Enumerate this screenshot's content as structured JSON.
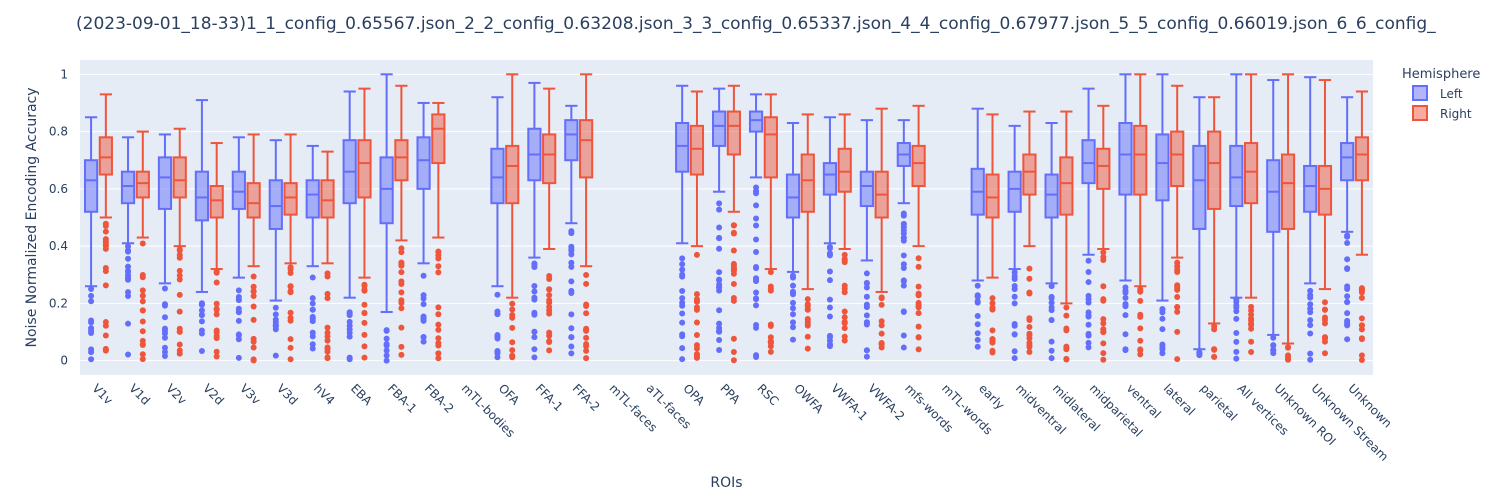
{
  "chart_data": {
    "type": "box",
    "title": "(2023-09-01_18-33)1_1_config_0.65567.json_2_2_config_0.63208.json_3_3_config_0.65337.json_4_4_config_0.67977.json_5_5_config_0.66019.json_6_6_config_",
    "xlabel": "ROIs",
    "ylabel": "Noise Normalized Encoding Accuracy",
    "ylim": [
      -0.05,
      1.05
    ],
    "yticks": [
      0,
      0.2,
      0.4,
      0.6,
      0.8,
      1
    ],
    "ytick_labels": [
      "0",
      "0.2",
      "0.4",
      "0.6",
      "0.8",
      "1"
    ],
    "grid": true,
    "legend_title": "Hemisphere",
    "legend_position": "right",
    "categories": [
      "V1v",
      "V1d",
      "V2v",
      "V2d",
      "V3v",
      "V3d",
      "hV4",
      "EBA",
      "FBA-1",
      "FBA-2",
      "mTL-bodies",
      "OFA",
      "FFA-1",
      "FFA-2",
      "mTL-faces",
      "aTL-faces",
      "OPA",
      "PPA",
      "RSC",
      "OWFA",
      "VWFA-1",
      "VWFA-2",
      "mfs-words",
      "mTL-words",
      "early",
      "midventral",
      "midlateral",
      "midparietal",
      "ventral",
      "lateral",
      "parietal",
      "All vertices",
      "Unknown ROI",
      "Unknown Stream",
      "Unknown"
    ],
    "series": [
      {
        "name": "Left",
        "color": "#636efa",
        "boxes": [
          {
            "lf": 0.26,
            "q1": 0.52,
            "med": 0.63,
            "q3": 0.7,
            "uf": 0.85
          },
          {
            "lf": 0.41,
            "q1": 0.55,
            "med": 0.61,
            "q3": 0.66,
            "uf": 0.78
          },
          {
            "lf": 0.27,
            "q1": 0.53,
            "med": 0.64,
            "q3": 0.71,
            "uf": 0.79
          },
          {
            "lf": 0.24,
            "q1": 0.49,
            "med": 0.57,
            "q3": 0.66,
            "uf": 0.91
          },
          {
            "lf": 0.29,
            "q1": 0.53,
            "med": 0.59,
            "q3": 0.66,
            "uf": 0.78
          },
          {
            "lf": 0.21,
            "q1": 0.46,
            "med": 0.54,
            "q3": 0.63,
            "uf": 0.77
          },
          {
            "lf": 0.33,
            "q1": 0.5,
            "med": 0.58,
            "q3": 0.63,
            "uf": 0.75
          },
          {
            "lf": 0.22,
            "q1": 0.55,
            "med": 0.66,
            "q3": 0.77,
            "uf": 0.94
          },
          {
            "lf": 0.17,
            "q1": 0.48,
            "med": 0.6,
            "q3": 0.71,
            "uf": 1.0
          },
          {
            "lf": 0.34,
            "q1": 0.6,
            "med": 0.7,
            "q3": 0.78,
            "uf": 0.9
          },
          null,
          {
            "lf": 0.26,
            "q1": 0.55,
            "med": 0.64,
            "q3": 0.74,
            "uf": 0.92
          },
          {
            "lf": 0.36,
            "q1": 0.63,
            "med": 0.72,
            "q3": 0.81,
            "uf": 0.97
          },
          {
            "lf": 0.48,
            "q1": 0.7,
            "med": 0.79,
            "q3": 0.84,
            "uf": 0.89
          },
          null,
          null,
          {
            "lf": 0.41,
            "q1": 0.66,
            "med": 0.75,
            "q3": 0.83,
            "uf": 0.96
          },
          {
            "lf": 0.59,
            "q1": 0.75,
            "med": 0.82,
            "q3": 0.87,
            "uf": 0.95
          },
          {
            "lf": 0.64,
            "q1": 0.8,
            "med": 0.84,
            "q3": 0.87,
            "uf": 0.93
          },
          {
            "lf": 0.31,
            "q1": 0.5,
            "med": 0.57,
            "q3": 0.65,
            "uf": 0.83
          },
          {
            "lf": 0.41,
            "q1": 0.58,
            "med": 0.65,
            "q3": 0.69,
            "uf": 0.85
          },
          {
            "lf": 0.35,
            "q1": 0.54,
            "med": 0.61,
            "q3": 0.66,
            "uf": 0.84
          },
          {
            "lf": 0.55,
            "q1": 0.68,
            "med": 0.72,
            "q3": 0.76,
            "uf": 0.84
          },
          null,
          {
            "lf": 0.28,
            "q1": 0.51,
            "med": 0.59,
            "q3": 0.67,
            "uf": 0.88
          },
          {
            "lf": 0.32,
            "q1": 0.52,
            "med": 0.6,
            "q3": 0.66,
            "uf": 0.82
          },
          {
            "lf": 0.27,
            "q1": 0.5,
            "med": 0.58,
            "q3": 0.65,
            "uf": 0.83
          },
          {
            "lf": 0.37,
            "q1": 0.62,
            "med": 0.69,
            "q3": 0.77,
            "uf": 0.95
          },
          {
            "lf": 0.28,
            "q1": 0.58,
            "med": 0.72,
            "q3": 0.83,
            "uf": 1.0
          },
          {
            "lf": 0.21,
            "q1": 0.56,
            "med": 0.69,
            "q3": 0.79,
            "uf": 1.0
          },
          {
            "lf": 0.04,
            "q1": 0.46,
            "med": 0.63,
            "q3": 0.75,
            "uf": 0.92
          },
          {
            "lf": 0.22,
            "q1": 0.54,
            "med": 0.64,
            "q3": 0.75,
            "uf": 1.0
          },
          {
            "lf": 0.09,
            "q1": 0.45,
            "med": 0.59,
            "q3": 0.7,
            "uf": 0.98
          },
          {
            "lf": 0.27,
            "q1": 0.52,
            "med": 0.61,
            "q3": 0.68,
            "uf": 0.99
          },
          {
            "lf": 0.45,
            "q1": 0.63,
            "med": 0.71,
            "q3": 0.76,
            "uf": 0.92
          }
        ]
      },
      {
        "name": "Right",
        "color": "#ef553b",
        "boxes": [
          {
            "lf": 0.5,
            "q1": 0.65,
            "med": 0.71,
            "q3": 0.78,
            "uf": 0.93
          },
          {
            "lf": 0.43,
            "q1": 0.57,
            "med": 0.62,
            "q3": 0.66,
            "uf": 0.8
          },
          {
            "lf": 0.4,
            "q1": 0.57,
            "med": 0.63,
            "q3": 0.71,
            "uf": 0.81
          },
          {
            "lf": 0.32,
            "q1": 0.5,
            "med": 0.56,
            "q3": 0.61,
            "uf": 0.76
          },
          {
            "lf": 0.33,
            "q1": 0.5,
            "med": 0.55,
            "q3": 0.62,
            "uf": 0.79
          },
          {
            "lf": 0.34,
            "q1": 0.51,
            "med": 0.57,
            "q3": 0.62,
            "uf": 0.79
          },
          {
            "lf": 0.34,
            "q1": 0.5,
            "med": 0.56,
            "q3": 0.63,
            "uf": 0.73
          },
          {
            "lf": 0.29,
            "q1": 0.57,
            "med": 0.69,
            "q3": 0.77,
            "uf": 0.95
          },
          {
            "lf": 0.42,
            "q1": 0.63,
            "med": 0.71,
            "q3": 0.77,
            "uf": 0.96
          },
          {
            "lf": 0.43,
            "q1": 0.69,
            "med": 0.81,
            "q3": 0.86,
            "uf": 0.9
          },
          null,
          {
            "lf": 0.22,
            "q1": 0.55,
            "med": 0.68,
            "q3": 0.75,
            "uf": 1.0
          },
          {
            "lf": 0.39,
            "q1": 0.62,
            "med": 0.72,
            "q3": 0.79,
            "uf": 0.95
          },
          {
            "lf": 0.33,
            "q1": 0.64,
            "med": 0.77,
            "q3": 0.84,
            "uf": 1.0
          },
          null,
          null,
          {
            "lf": 0.4,
            "q1": 0.65,
            "med": 0.74,
            "q3": 0.82,
            "uf": 0.94
          },
          {
            "lf": 0.52,
            "q1": 0.72,
            "med": 0.82,
            "q3": 0.87,
            "uf": 0.96
          },
          {
            "lf": 0.32,
            "q1": 0.64,
            "med": 0.79,
            "q3": 0.85,
            "uf": 0.93
          },
          {
            "lf": 0.25,
            "q1": 0.52,
            "med": 0.63,
            "q3": 0.72,
            "uf": 0.86
          },
          {
            "lf": 0.39,
            "q1": 0.59,
            "med": 0.66,
            "q3": 0.74,
            "uf": 0.86
          },
          {
            "lf": 0.24,
            "q1": 0.5,
            "med": 0.58,
            "q3": 0.66,
            "uf": 0.88
          },
          {
            "lf": 0.4,
            "q1": 0.61,
            "med": 0.69,
            "q3": 0.75,
            "uf": 0.89
          },
          null,
          {
            "lf": 0.29,
            "q1": 0.5,
            "med": 0.57,
            "q3": 0.65,
            "uf": 0.86
          },
          {
            "lf": 0.4,
            "q1": 0.58,
            "med": 0.66,
            "q3": 0.72,
            "uf": 0.87
          },
          {
            "lf": 0.2,
            "q1": 0.51,
            "med": 0.62,
            "q3": 0.71,
            "uf": 0.87
          },
          {
            "lf": 0.39,
            "q1": 0.6,
            "med": 0.68,
            "q3": 0.74,
            "uf": 0.89
          },
          {
            "lf": 0.26,
            "q1": 0.58,
            "med": 0.72,
            "q3": 0.82,
            "uf": 1.0
          },
          {
            "lf": 0.36,
            "q1": 0.61,
            "med": 0.72,
            "q3": 0.8,
            "uf": 0.96
          },
          {
            "lf": 0.13,
            "q1": 0.53,
            "med": 0.69,
            "q3": 0.8,
            "uf": 0.92
          },
          {
            "lf": 0.22,
            "q1": 0.55,
            "med": 0.66,
            "q3": 0.76,
            "uf": 1.0
          },
          {
            "lf": 0.06,
            "q1": 0.46,
            "med": 0.62,
            "q3": 0.72,
            "uf": 1.0
          },
          {
            "lf": 0.25,
            "q1": 0.51,
            "med": 0.6,
            "q3": 0.68,
            "uf": 0.98
          },
          {
            "lf": 0.37,
            "q1": 0.63,
            "med": 0.72,
            "q3": 0.78,
            "uf": 0.94
          }
        ]
      }
    ]
  }
}
